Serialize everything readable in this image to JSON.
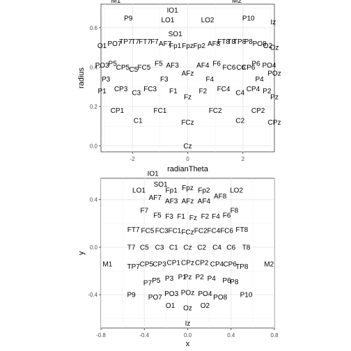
{
  "chart_data": [
    {
      "type": "scatter",
      "title": "",
      "xlabel": "radianTheta",
      "ylabel": "radius",
      "xlim": [
        -3.14,
        3.14
      ],
      "ylim": [
        -0.03,
        0.72
      ],
      "xticks": [
        -2,
        0,
        2
      ],
      "yticks": [
        0.0,
        0.2,
        0.4,
        0.6
      ],
      "ytick_labels": [
        "0.0",
        "0.2",
        "0.4",
        "0.6"
      ],
      "grid": true,
      "background": "#ffffff",
      "grid_color": "#ebebeb",
      "text_color": "#000000",
      "points": [
        {
          "label": "M1",
          "x": -2.6,
          "y": 0.74
        },
        {
          "label": "M2",
          "x": 1.78,
          "y": 0.74
        },
        {
          "label": "IO1",
          "x": -0.55,
          "y": 0.69
        },
        {
          "label": "P9",
          "x": -2.15,
          "y": 0.65
        },
        {
          "label": "LO1",
          "x": -0.72,
          "y": 0.64
        },
        {
          "label": "LO2",
          "x": 0.72,
          "y": 0.64
        },
        {
          "label": "P10",
          "x": 2.2,
          "y": 0.65
        },
        {
          "label": "Iz",
          "x": 3.1,
          "y": 0.63
        },
        {
          "label": "SO1",
          "x": -0.45,
          "y": 0.57
        },
        {
          "label": "O1",
          "x": -3.1,
          "y": 0.51
        },
        {
          "label": "PO7",
          "x": -2.65,
          "y": 0.52
        },
        {
          "label": "TP7",
          "x": -2.25,
          "y": 0.53
        },
        {
          "label": "T7",
          "x": -1.9,
          "y": 0.53
        },
        {
          "label": "FT7",
          "x": -1.55,
          "y": 0.53
        },
        {
          "label": "F7",
          "x": -1.2,
          "y": 0.53
        },
        {
          "label": "AF7",
          "x": -0.82,
          "y": 0.52
        },
        {
          "label": "Fp1",
          "x": -0.45,
          "y": 0.51
        },
        {
          "label": "Fpz",
          "x": 0.0,
          "y": 0.51
        },
        {
          "label": "Fp2",
          "x": 0.42,
          "y": 0.51
        },
        {
          "label": "AF8",
          "x": 0.95,
          "y": 0.52
        },
        {
          "label": "FT8",
          "x": 1.3,
          "y": 0.53
        },
        {
          "label": "T8",
          "x": 1.58,
          "y": 0.53
        },
        {
          "label": "TP8",
          "x": 1.88,
          "y": 0.53
        },
        {
          "label": "P8",
          "x": 2.2,
          "y": 0.53
        },
        {
          "label": "PO8",
          "x": 2.6,
          "y": 0.52
        },
        {
          "label": "O2",
          "x": 2.9,
          "y": 0.51
        },
        {
          "label": "Oz",
          "x": 3.14,
          "y": 0.5
        },
        {
          "label": "PO3",
          "x": -3.1,
          "y": 0.41
        },
        {
          "label": "P5",
          "x": -2.72,
          "y": 0.42
        },
        {
          "label": "CP5",
          "x": -2.35,
          "y": 0.4
        },
        {
          "label": "C5",
          "x": -1.96,
          "y": 0.39
        },
        {
          "label": "FC5",
          "x": -1.58,
          "y": 0.4
        },
        {
          "label": "F5",
          "x": -1.05,
          "y": 0.42
        },
        {
          "label": "AF3",
          "x": -0.55,
          "y": 0.41
        },
        {
          "label": "AF4",
          "x": 0.55,
          "y": 0.41
        },
        {
          "label": "F6",
          "x": 1.05,
          "y": 0.42
        },
        {
          "label": "FC6",
          "x": 1.5,
          "y": 0.4
        },
        {
          "label": "C6",
          "x": 1.92,
          "y": 0.4
        },
        {
          "label": "CP6",
          "x": 2.2,
          "y": 0.4
        },
        {
          "label": "P6",
          "x": 2.47,
          "y": 0.42
        },
        {
          "label": "PO4",
          "x": 2.95,
          "y": 0.41
        },
        {
          "label": "POz",
          "x": 3.14,
          "y": 0.37
        },
        {
          "label": "AFz",
          "x": 0.0,
          "y": 0.37
        },
        {
          "label": "P3",
          "x": -2.96,
          "y": 0.34
        },
        {
          "label": "F3",
          "x": -0.85,
          "y": 0.34
        },
        {
          "label": "F4",
          "x": 0.8,
          "y": 0.34
        },
        {
          "label": "P4",
          "x": 2.6,
          "y": 0.34
        },
        {
          "label": "P1",
          "x": -3.1,
          "y": 0.28
        },
        {
          "label": "CP3",
          "x": -2.42,
          "y": 0.29
        },
        {
          "label": "C3",
          "x": -1.86,
          "y": 0.27
        },
        {
          "label": "FC3",
          "x": -1.36,
          "y": 0.29
        },
        {
          "label": "F1",
          "x": -0.52,
          "y": 0.28
        },
        {
          "label": "Fz",
          "x": 0.0,
          "y": 0.25
        },
        {
          "label": "F2",
          "x": 0.55,
          "y": 0.28
        },
        {
          "label": "FC4",
          "x": 1.3,
          "y": 0.29
        },
        {
          "label": "C4",
          "x": 1.9,
          "y": 0.27
        },
        {
          "label": "CP4",
          "x": 2.37,
          "y": 0.29
        },
        {
          "label": "P2",
          "x": 2.87,
          "y": 0.28
        },
        {
          "label": "Pz",
          "x": 3.14,
          "y": 0.25
        },
        {
          "label": "CP1",
          "x": -2.55,
          "y": 0.18
        },
        {
          "label": "FC1",
          "x": -1.0,
          "y": 0.18
        },
        {
          "label": "FC2",
          "x": 1.0,
          "y": 0.18
        },
        {
          "label": "CP2",
          "x": 2.55,
          "y": 0.18
        },
        {
          "label": "C1",
          "x": -1.8,
          "y": 0.13
        },
        {
          "label": "FCz",
          "x": 0.0,
          "y": 0.12
        },
        {
          "label": "C2",
          "x": 1.9,
          "y": 0.13
        },
        {
          "label": "CPz",
          "x": 3.14,
          "y": 0.12
        },
        {
          "label": "Cz",
          "x": 0.0,
          "y": 0.0
        }
      ]
    },
    {
      "type": "scatter",
      "title": "",
      "xlabel": "x",
      "ylabel": "y",
      "xlim": [
        -0.8,
        0.8
      ],
      "ylim": [
        -0.68,
        0.58
      ],
      "xticks": [
        -0.8,
        -0.4,
        0.0,
        0.4,
        0.8
      ],
      "xtick_labels": [
        "-0.8",
        "-0.4",
        "0.0",
        "0.4",
        "0.8"
      ],
      "yticks": [
        -0.4,
        0.0,
        0.4
      ],
      "ytick_labels": [
        "-0.4",
        "0.0",
        "0.4"
      ],
      "grid": true,
      "background": "#ffffff",
      "grid_color": "#ebebeb",
      "text_color": "#000000",
      "points": [
        {
          "label": "IO1",
          "x": -0.32,
          "y": 0.62
        },
        {
          "label": "SO1",
          "x": -0.25,
          "y": 0.53
        },
        {
          "label": "LO1",
          "x": -0.45,
          "y": 0.48
        },
        {
          "label": "Fp1",
          "x": -0.15,
          "y": 0.48
        },
        {
          "label": "Fpz",
          "x": 0.0,
          "y": 0.5
        },
        {
          "label": "Fp2",
          "x": 0.15,
          "y": 0.48
        },
        {
          "label": "LO2",
          "x": 0.45,
          "y": 0.48
        },
        {
          "label": "AF7",
          "x": -0.3,
          "y": 0.42
        },
        {
          "label": "AF8",
          "x": 0.3,
          "y": 0.43
        },
        {
          "label": "AF3",
          "x": -0.15,
          "y": 0.39
        },
        {
          "label": "AFz",
          "x": 0.0,
          "y": 0.39
        },
        {
          "label": "AF4",
          "x": 0.15,
          "y": 0.39
        },
        {
          "label": "F7",
          "x": -0.4,
          "y": 0.31
        },
        {
          "label": "F8",
          "x": 0.43,
          "y": 0.31
        },
        {
          "label": "F5",
          "x": -0.28,
          "y": 0.27
        },
        {
          "label": "F3",
          "x": -0.17,
          "y": 0.26
        },
        {
          "label": "F1",
          "x": -0.06,
          "y": 0.26
        },
        {
          "label": "Fz",
          "x": 0.05,
          "y": 0.25
        },
        {
          "label": "F2",
          "x": 0.16,
          "y": 0.26
        },
        {
          "label": "F4",
          "x": 0.26,
          "y": 0.26
        },
        {
          "label": "F6",
          "x": 0.36,
          "y": 0.27
        },
        {
          "label": "FT7",
          "x": -0.5,
          "y": 0.15
        },
        {
          "label": "FC5",
          "x": -0.37,
          "y": 0.14
        },
        {
          "label": "FC3",
          "x": -0.24,
          "y": 0.14
        },
        {
          "label": "FC1",
          "x": -0.12,
          "y": 0.14
        },
        {
          "label": "FCz",
          "x": 0.0,
          "y": 0.13
        },
        {
          "label": "FC2",
          "x": 0.12,
          "y": 0.14
        },
        {
          "label": "FC4",
          "x": 0.24,
          "y": 0.14
        },
        {
          "label": "FC6",
          "x": 0.36,
          "y": 0.14
        },
        {
          "label": "FT8",
          "x": 0.5,
          "y": 0.15
        },
        {
          "label": "T7",
          "x": -0.52,
          "y": 0.0
        },
        {
          "label": "C5",
          "x": -0.4,
          "y": 0.0
        },
        {
          "label": "C3",
          "x": -0.26,
          "y": 0.0
        },
        {
          "label": "C1",
          "x": -0.13,
          "y": 0.0
        },
        {
          "label": "Cz",
          "x": 0.0,
          "y": 0.0
        },
        {
          "label": "C2",
          "x": 0.13,
          "y": 0.0
        },
        {
          "label": "C4",
          "x": 0.27,
          "y": 0.0
        },
        {
          "label": "C6",
          "x": 0.4,
          "y": 0.0
        },
        {
          "label": "T8",
          "x": 0.54,
          "y": 0.0
        },
        {
          "label": "M1",
          "x": -0.74,
          "y": -0.14
        },
        {
          "label": "TP7",
          "x": -0.5,
          "y": -0.16
        },
        {
          "label": "CP5",
          "x": -0.38,
          "y": -0.14
        },
        {
          "label": "CP3",
          "x": -0.26,
          "y": -0.14
        },
        {
          "label": "CP1",
          "x": -0.13,
          "y": -0.13
        },
        {
          "label": "CPz",
          "x": 0.0,
          "y": -0.13
        },
        {
          "label": "CP2",
          "x": 0.13,
          "y": -0.13
        },
        {
          "label": "CP4",
          "x": 0.27,
          "y": -0.14
        },
        {
          "label": "CP6",
          "x": 0.39,
          "y": -0.14
        },
        {
          "label": "TP8",
          "x": 0.5,
          "y": -0.16
        },
        {
          "label": "M2",
          "x": 0.75,
          "y": -0.14
        },
        {
          "label": "P9",
          "x": -0.52,
          "y": -0.4
        },
        {
          "label": "P7",
          "x": -0.37,
          "y": -0.3
        },
        {
          "label": "P5",
          "x": -0.29,
          "y": -0.28
        },
        {
          "label": "P3",
          "x": -0.17,
          "y": -0.26
        },
        {
          "label": "P1",
          "x": -0.05,
          "y": -0.25
        },
        {
          "label": "Pz",
          "x": 0.0,
          "y": -0.25
        },
        {
          "label": "P2",
          "x": 0.11,
          "y": -0.25
        },
        {
          "label": "P4",
          "x": 0.22,
          "y": -0.26
        },
        {
          "label": "P6",
          "x": 0.36,
          "y": -0.28
        },
        {
          "label": "P8",
          "x": 0.43,
          "y": -0.29
        },
        {
          "label": "P10",
          "x": 0.54,
          "y": -0.4
        },
        {
          "label": "PO7",
          "x": -0.3,
          "y": -0.42
        },
        {
          "label": "PO3",
          "x": -0.15,
          "y": -0.39
        },
        {
          "label": "POz",
          "x": 0.0,
          "y": -0.38
        },
        {
          "label": "PO4",
          "x": 0.16,
          "y": -0.39
        },
        {
          "label": "PO8",
          "x": 0.3,
          "y": -0.42
        },
        {
          "label": "O1",
          "x": -0.16,
          "y": -0.49
        },
        {
          "label": "Oz",
          "x": 0.0,
          "y": -0.51
        },
        {
          "label": "O2",
          "x": 0.16,
          "y": -0.49
        },
        {
          "label": "Iz",
          "x": 0.0,
          "y": -0.64
        }
      ]
    }
  ]
}
